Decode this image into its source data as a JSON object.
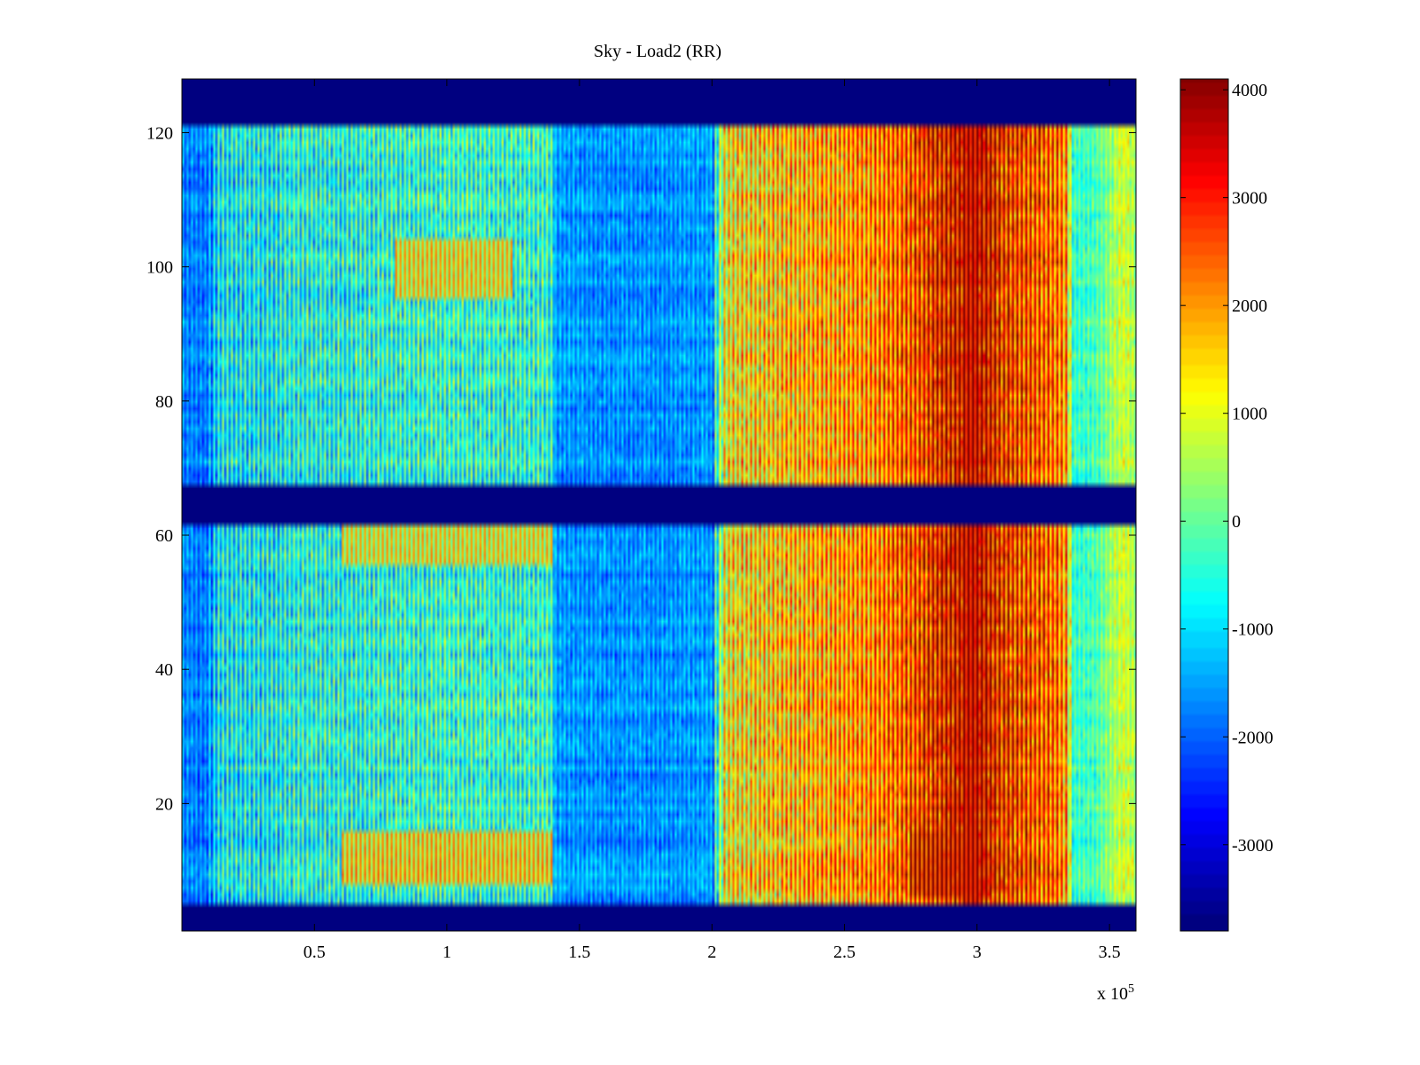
{
  "chart_data": {
    "type": "heatmap",
    "title": "Sky - Load2 (RR)",
    "xlabel": "",
    "ylabel": "",
    "x_exponent_label": "x 10",
    "x_exponent": "5",
    "xlim": [
      0,
      360000
    ],
    "ylim": [
      1,
      128
    ],
    "x_ticks": [
      50000,
      100000,
      150000,
      200000,
      250000,
      300000,
      350000
    ],
    "x_tick_labels": [
      "0.5",
      "1",
      "1.5",
      "2",
      "2.5",
      "3",
      "3.5"
    ],
    "y_ticks": [
      20,
      40,
      60,
      80,
      100,
      120
    ],
    "y_tick_labels": [
      "20",
      "40",
      "60",
      "80",
      "100",
      "120"
    ],
    "colorbar": {
      "range": [
        -3800,
        4100
      ],
      "ticks": [
        4000,
        3000,
        2000,
        1000,
        0,
        -1000,
        -2000,
        -3000
      ],
      "tick_labels": [
        "4000",
        "3000",
        "2000",
        "1000",
        "0",
        "-1000",
        "-2000",
        "-3000"
      ],
      "colormap": "jet"
    },
    "masked_rows": [
      [
        1,
        4
      ],
      [
        62,
        67
      ],
      [
        122,
        128
      ]
    ],
    "mask_value": -3800,
    "column_trend": {
      "x": [
        0,
        10000,
        14000,
        36000,
        40000,
        60000,
        80000,
        100000,
        125000,
        139000,
        141000,
        160000,
        180000,
        200000,
        205000,
        230000,
        260000,
        275000,
        290000,
        300000,
        310000,
        330000,
        334000,
        336000,
        345000,
        355000,
        360000
      ],
      "value": [
        -1800,
        -1900,
        -900,
        -900,
        -700,
        -700,
        -600,
        -500,
        -600,
        -500,
        -1600,
        -1700,
        -1700,
        -1600,
        1200,
        1600,
        2000,
        2500,
        3200,
        3600,
        2800,
        2300,
        1800,
        -500,
        -300,
        800,
        400
      ]
    },
    "hot_patches": [
      {
        "x_range": [
          60000,
          140000
        ],
        "y_range": [
          8,
          15
        ],
        "value": 2500
      },
      {
        "x_range": [
          80000,
          125000
        ],
        "y_range": [
          96,
          104
        ],
        "value": 2200
      },
      {
        "x_range": [
          60000,
          140000
        ],
        "y_range": [
          56,
          61
        ],
        "value": 2000
      },
      {
        "x_range": [
          275000,
          300000
        ],
        "y_range": [
          6,
          15
        ],
        "value": 3500
      },
      {
        "x_range": [
          295000,
          300000
        ],
        "y_range": [
          5,
          121
        ],
        "value": 3800
      }
    ]
  }
}
